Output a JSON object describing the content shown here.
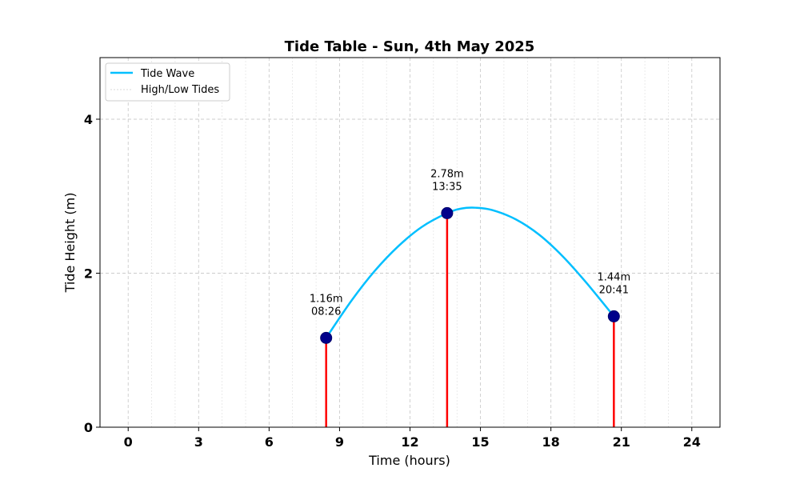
{
  "chart_data": {
    "type": "line",
    "title": "Tide Table - Sun, 4th May 2025",
    "xlabel": "Time (hours)",
    "ylabel": "Tide Height (m)",
    "xlim": [
      -1.2,
      25.2
    ],
    "ylim": [
      0,
      4.8
    ],
    "xticks": [
      0,
      3,
      6,
      9,
      12,
      15,
      18,
      21,
      24
    ],
    "xtick_labels": [
      "0",
      "3",
      "6",
      "9",
      "12",
      "15",
      "18",
      "21",
      "24"
    ],
    "yticks": [
      0,
      2,
      4
    ],
    "ytick_labels": [
      "0",
      "2",
      "4"
    ],
    "grid": true,
    "legend_position": "top-left",
    "tide_wave": {
      "name": "Tide Wave",
      "color": "#00bfff",
      "x": [
        8.43,
        9.5,
        10.5,
        11.5,
        12.5,
        13.58,
        14.2,
        14.8,
        15.5,
        16.5,
        17.5,
        18.5,
        19.5,
        20.68
      ],
      "y": [
        1.16,
        1.64,
        2.03,
        2.35,
        2.6,
        2.78,
        2.84,
        2.85,
        2.82,
        2.7,
        2.5,
        2.22,
        1.88,
        1.44
      ]
    },
    "tides": {
      "name": "High/Low Tides",
      "marker_color": "#00008b",
      "stem_color": "#ff0000",
      "points": [
        {
          "x": 8.43,
          "y": 1.16,
          "height_label": "1.16m",
          "time_label": "08:26"
        },
        {
          "x": 13.58,
          "y": 2.78,
          "height_label": "2.78m",
          "time_label": "13:35"
        },
        {
          "x": 20.68,
          "y": 1.44,
          "height_label": "1.44m",
          "time_label": "20:41"
        }
      ]
    }
  }
}
